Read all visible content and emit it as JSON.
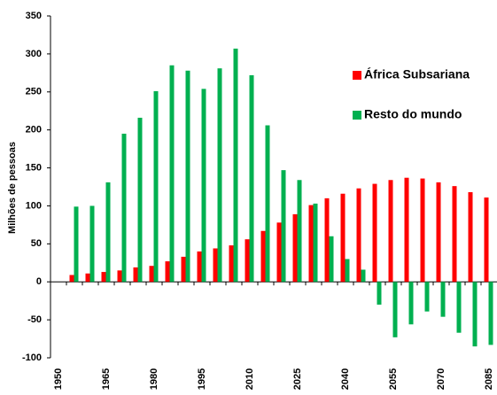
{
  "chart_data": {
    "type": "bar",
    "y_label": "Milhões de pessoas",
    "categories": [
      "1950",
      null,
      null,
      "1965",
      null,
      null,
      "1980",
      null,
      null,
      "1995",
      null,
      null,
      "2010",
      null,
      null,
      "2025",
      null,
      null,
      "2040",
      null,
      null,
      "2055",
      null,
      null,
      "2070",
      null,
      null,
      "2085"
    ],
    "series": [
      {
        "name": "África Subsariana",
        "color": "#ff0000",
        "values": [
          null,
          9,
          11,
          13,
          15,
          19,
          21,
          27,
          33,
          40,
          44,
          48,
          56,
          67,
          78,
          89,
          101,
          110,
          116,
          123,
          129,
          134,
          137,
          136,
          131,
          126,
          118,
          111
        ]
      },
      {
        "name": "Resto do mundo",
        "color": "#00b050",
        "values": [
          null,
          99,
          100,
          131,
          195,
          216,
          251,
          285,
          278,
          254,
          281,
          307,
          272,
          206,
          147,
          134,
          103,
          60,
          30,
          16,
          -30,
          -73,
          -56,
          -39,
          -46,
          -67,
          -85,
          -83
        ]
      }
    ],
    "ylim": [
      -100,
      350
    ],
    "yticks": [
      -100,
      -50,
      0,
      50,
      100,
      150,
      200,
      250,
      300,
      350
    ],
    "grid": false,
    "legend": "right"
  }
}
